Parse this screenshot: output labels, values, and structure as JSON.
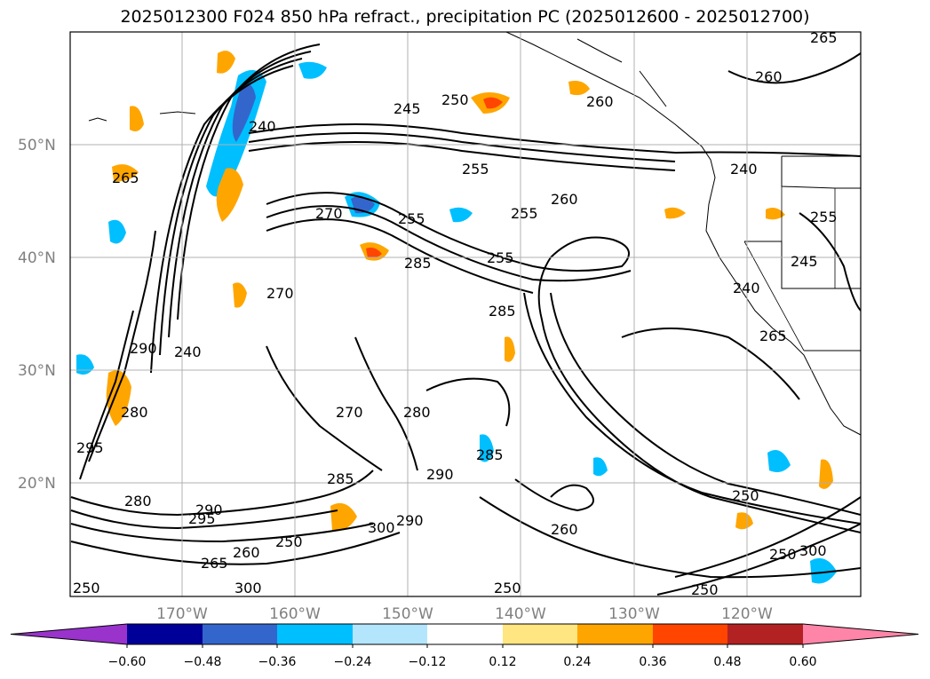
{
  "title": "2025012300 F024 850 hPa refract., precipitation PC (2025012600 - 2025012700)",
  "map": {
    "lat_labels": [
      "50°N",
      "40°N",
      "30°N",
      "20°N"
    ],
    "lon_labels": [
      "170°W",
      "160°W",
      "150°W",
      "140°W",
      "130°W",
      "120°W"
    ],
    "contour_labels": [
      "265",
      "260",
      "260",
      "250",
      "245",
      "240",
      "265",
      "255",
      "260",
      "255",
      "255",
      "270",
      "285",
      "285",
      "255",
      "270",
      "240",
      "245",
      "240",
      "265",
      "290",
      "240",
      "280",
      "295",
      "280",
      "270",
      "290",
      "280",
      "295",
      "285",
      "290",
      "300",
      "265",
      "260",
      "250",
      "300",
      "260",
      "255",
      "250",
      "250",
      "290",
      "285",
      "250",
      "250",
      "250",
      "300"
    ]
  },
  "colorbar": {
    "ticks": [
      "−0.60",
      "−0.48",
      "−0.36",
      "−0.24",
      "−0.12",
      "0.12",
      "0.24",
      "0.36",
      "0.48",
      "0.60"
    ],
    "colors": [
      "#9933cc",
      "#000099",
      "#3366cc",
      "#00bfff",
      "#b3e5fc",
      "#ffffff",
      "#ffe680",
      "#ffa500",
      "#ff4500",
      "#b22222",
      "#ff85a8"
    ]
  }
}
